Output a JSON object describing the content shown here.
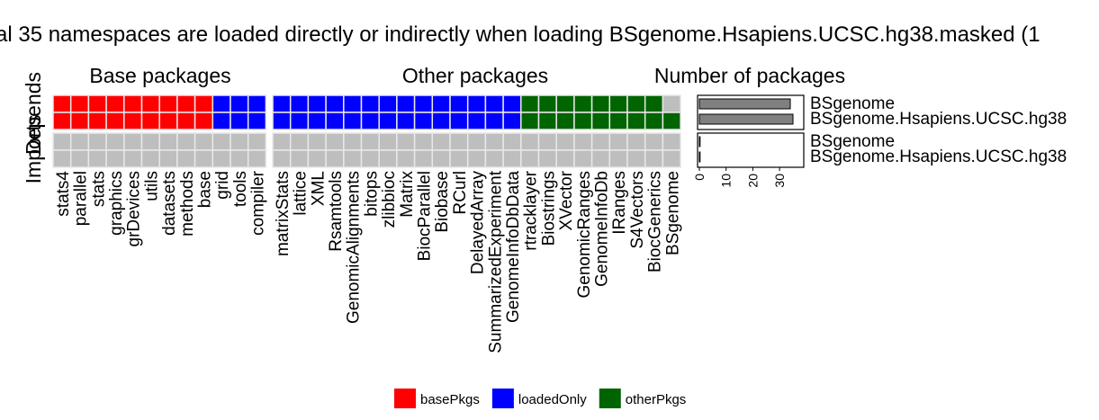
{
  "chart_data": {
    "type": "heatmap",
    "title": "al 35 namespaces are loaded directly or indirectly when loading BSgenome.Hsapiens.UCSC.hg38.masked (1",
    "row_labels": [
      "Depends",
      "Imports"
    ],
    "row_label_overlap": "Depends",
    "row_label_imports": "Imports",
    "groups": [
      {
        "label": "Base packages",
        "packages": [
          "stats4",
          "parallel",
          "stats",
          "graphics",
          "grDevices",
          "utils",
          "datasets",
          "methods",
          "base",
          "grid",
          "tools",
          "compiler"
        ]
      },
      {
        "label": "Other packages",
        "packages": [
          "matrixStats",
          "lattice",
          "XML",
          "Rsamtools",
          "GenomicAlignments",
          "bitops",
          "zlibbioc",
          "Matrix",
          "BiocParallel",
          "Biobase",
          "RCurl",
          "DelayedArray",
          "SummarizedExperiment",
          "GenomeInfoDbData",
          "rtracklayer",
          "Biostrings",
          "XVector",
          "GenomicRanges",
          "GenomeInfoDb",
          "IRanges",
          "S4Vectors",
          "BiocGenerics",
          "BSgenome"
        ]
      }
    ],
    "depends_rows": [
      {
        "source": "BSgenome",
        "categories": [
          "basePkgs",
          "basePkgs",
          "basePkgs",
          "basePkgs",
          "basePkgs",
          "basePkgs",
          "basePkgs",
          "basePkgs",
          "basePkgs",
          "loadedOnly",
          "loadedOnly",
          "loadedOnly",
          "loadedOnly",
          "loadedOnly",
          "loadedOnly",
          "loadedOnly",
          "loadedOnly",
          "loadedOnly",
          "loadedOnly",
          "loadedOnly",
          "loadedOnly",
          "loadedOnly",
          "loadedOnly",
          "loadedOnly",
          "loadedOnly",
          "loadedOnly",
          "otherPkgs",
          "otherPkgs",
          "otherPkgs",
          "otherPkgs",
          "otherPkgs",
          "otherPkgs",
          "otherPkgs",
          "otherPkgs",
          "none"
        ]
      },
      {
        "source": "BSgenome.Hsapiens.UCSC.hg38",
        "categories": [
          "basePkgs",
          "basePkgs",
          "basePkgs",
          "basePkgs",
          "basePkgs",
          "basePkgs",
          "basePkgs",
          "basePkgs",
          "basePkgs",
          "loadedOnly",
          "loadedOnly",
          "loadedOnly",
          "loadedOnly",
          "loadedOnly",
          "loadedOnly",
          "loadedOnly",
          "loadedOnly",
          "loadedOnly",
          "loadedOnly",
          "loadedOnly",
          "loadedOnly",
          "loadedOnly",
          "loadedOnly",
          "loadedOnly",
          "loadedOnly",
          "loadedOnly",
          "otherPkgs",
          "otherPkgs",
          "otherPkgs",
          "otherPkgs",
          "otherPkgs",
          "otherPkgs",
          "otherPkgs",
          "otherPkgs",
          "otherPkgs"
        ]
      }
    ],
    "imports_rows": [
      {
        "source": "BSgenome",
        "categories": [
          "none",
          "none",
          "none",
          "none",
          "none",
          "none",
          "none",
          "none",
          "none",
          "none",
          "none",
          "none",
          "none",
          "none",
          "none",
          "none",
          "none",
          "none",
          "none",
          "none",
          "none",
          "none",
          "none",
          "none",
          "none",
          "none",
          "none",
          "none",
          "none",
          "none",
          "none",
          "none",
          "none",
          "none",
          "none"
        ]
      },
      {
        "source": "BSgenome.Hsapiens.UCSC.hg38",
        "categories": [
          "none",
          "none",
          "none",
          "none",
          "none",
          "none",
          "none",
          "none",
          "none",
          "none",
          "none",
          "none",
          "none",
          "none",
          "none",
          "none",
          "none",
          "none",
          "none",
          "none",
          "none",
          "none",
          "none",
          "none",
          "none",
          "none",
          "none",
          "none",
          "none",
          "none",
          "none",
          "none",
          "none",
          "none",
          "none"
        ]
      }
    ],
    "bar_panel": {
      "title": "Number of packages",
      "xlim": [
        0,
        35
      ],
      "ticks": [
        0,
        10,
        20,
        30
      ],
      "depends": [
        {
          "name": "BSgenome",
          "value": 34
        },
        {
          "name": "BSgenome.Hsapiens.UCSC.hg38",
          "value": 35
        }
      ],
      "imports": [
        {
          "name": "BSgenome",
          "value": 0
        },
        {
          "name": "BSgenome.Hsapiens.UCSC.hg38",
          "value": 0
        }
      ]
    },
    "legend": {
      "placement": "bottom",
      "entries": [
        {
          "key": "basePkgs",
          "label": "basePkgs",
          "color": "#ff0000"
        },
        {
          "key": "loadedOnly",
          "label": "loadedOnly",
          "color": "#0000ff"
        },
        {
          "key": "otherPkgs",
          "label": "otherPkgs",
          "color": "#006400"
        }
      ]
    },
    "colors": {
      "none": "#bebebe",
      "bar": "#808080",
      "basePkgs": "#ff0000",
      "loadedOnly": "#0000ff",
      "otherPkgs": "#006400"
    }
  }
}
